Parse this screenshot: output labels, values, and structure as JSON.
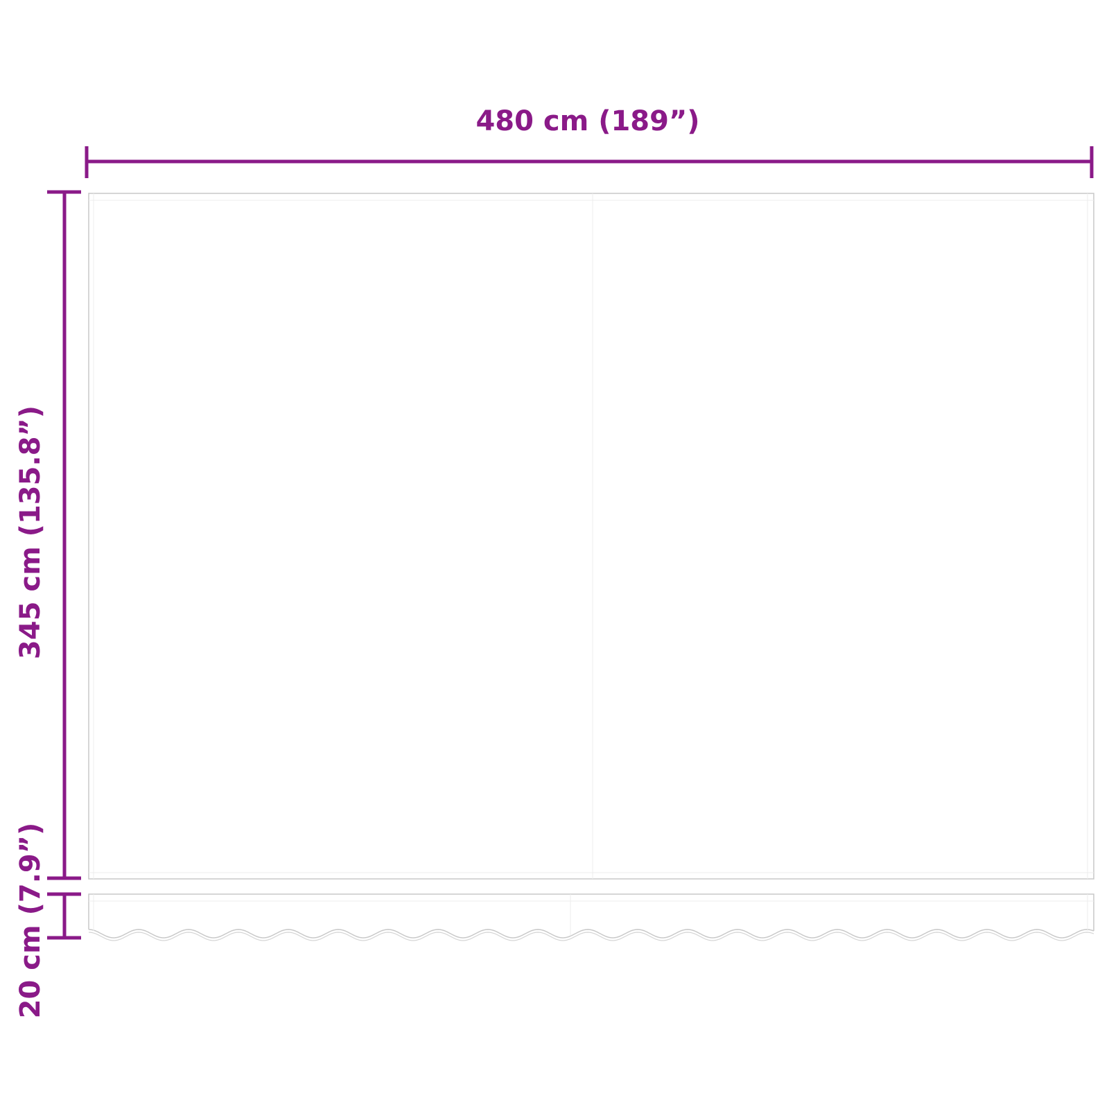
{
  "dimensions": {
    "width_label": "480 cm (189”)",
    "height_label": "345 cm (135.8”)",
    "valance_label": "20 cm (7.9”)"
  },
  "colors": {
    "dimension": "#8a1a88",
    "outline": "#c8c8c8",
    "inner_line": "#ececec"
  }
}
